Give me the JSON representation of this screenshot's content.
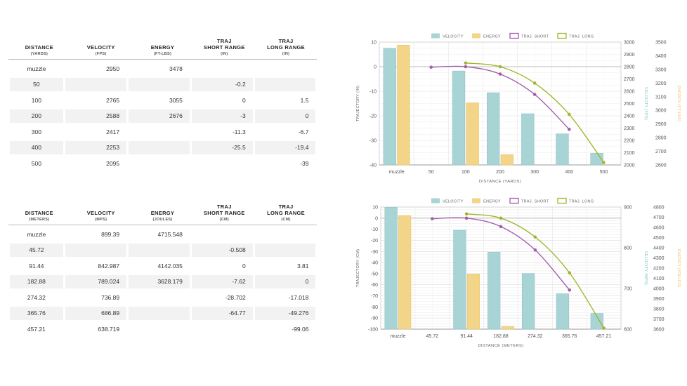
{
  "tables": [
    {
      "columns": [
        {
          "title": "DISTANCE",
          "unit": "(YARDS)"
        },
        {
          "title": "VELOCITY",
          "unit": "(FPS)"
        },
        {
          "title": "ENERGY",
          "unit": "(FT-LBS)"
        },
        {
          "title": "TRAJ\nSHORT RANGE",
          "unit": "(IN)"
        },
        {
          "title": "TRAJ\nLONG RANGE",
          "unit": "(IN)"
        }
      ],
      "rows": [
        [
          "muzzle",
          "2950",
          "3478",
          "",
          ""
        ],
        [
          "50",
          "",
          "",
          "-0.2",
          ""
        ],
        [
          "100",
          "2765",
          "3055",
          "0",
          "1.5"
        ],
        [
          "200",
          "2588",
          "2676",
          "-3",
          "0"
        ],
        [
          "300",
          "2417",
          "",
          "-11.3",
          "-6.7"
        ],
        [
          "400",
          "2253",
          "",
          "-25.5",
          "-19.4"
        ],
        [
          "500",
          "2095",
          "",
          "",
          "-39"
        ]
      ]
    },
    {
      "columns": [
        {
          "title": "DISTANCE",
          "unit": "(METERS)"
        },
        {
          "title": "VELOCITY",
          "unit": "(MPS)"
        },
        {
          "title": "ENERGY",
          "unit": "(JOULES)"
        },
        {
          "title": "TRAJ\nSHORT RANGE",
          "unit": "(CM)"
        },
        {
          "title": "TRAJ\nLONG RANGE",
          "unit": "(CM)"
        }
      ],
      "rows": [
        [
          "muzzle",
          "899.39",
          "4715.548",
          "",
          ""
        ],
        [
          "45.72",
          "",
          "",
          "-0.508",
          ""
        ],
        [
          "91.44",
          "842.987",
          "4142.035",
          "0",
          "3.81"
        ],
        [
          "182.88",
          "789.024",
          "3628.179",
          "-7.62",
          "0"
        ],
        [
          "274.32",
          "736.89",
          "",
          "-28.702",
          "-17.018"
        ],
        [
          "365.76",
          "686.89",
          "",
          "-64.77",
          "-49.276"
        ],
        [
          "457.21",
          "638.719",
          "",
          "",
          "-99.06"
        ]
      ]
    }
  ],
  "colors": {
    "velocity": "#a9d4d6",
    "energy": "#f3d58a",
    "traj_short": "#a55cab",
    "traj_long": "#a3b52c",
    "velocity_axis": "#7fbfc2",
    "energy_axis": "#e8c15c"
  },
  "chart_data": [
    {
      "type": "bar",
      "categories": [
        "muzzle",
        "50",
        "100",
        "200",
        "300",
        "400",
        "500"
      ],
      "xlabel": "DISTANCE (YARDS)",
      "legend": [
        "VELOCITY",
        "ENERGY",
        "TRAJ. SHORT",
        "TRAJ. LONG"
      ],
      "legend_position": "top",
      "grid": true,
      "left_axis": {
        "label": "TRAJECTORY (IN)",
        "ticks": [
          10,
          0,
          -10,
          -20,
          -30,
          -40
        ],
        "range": [
          -40,
          10
        ]
      },
      "velocity_axis": {
        "label": "VELOCITY (FPS)",
        "ticks": [
          3000,
          2900,
          2800,
          2700,
          2600,
          2500,
          2400,
          2300,
          2200,
          2100,
          2000
        ],
        "range": [
          2000,
          3000
        ]
      },
      "energy_axis": {
        "label": "ENERGY (FT-LBS)",
        "ticks": [
          3500,
          3400,
          3300,
          3200,
          3100,
          3000,
          2900,
          2800,
          2700,
          2600
        ],
        "range": [
          2600,
          3500
        ]
      },
      "series": [
        {
          "name": "VELOCITY",
          "kind": "bar",
          "axis": "velocity",
          "values": [
            2950,
            null,
            2765,
            2588,
            2417,
            2253,
            2095
          ]
        },
        {
          "name": "ENERGY",
          "kind": "bar",
          "axis": "energy",
          "values": [
            3478,
            null,
            3055,
            2676,
            null,
            null,
            null
          ]
        },
        {
          "name": "TRAJ. SHORT",
          "kind": "line",
          "axis": "left",
          "values": [
            null,
            -0.2,
            0,
            -3,
            -11.3,
            -25.5,
            null
          ]
        },
        {
          "name": "TRAJ. LONG",
          "kind": "line",
          "axis": "left",
          "values": [
            null,
            null,
            1.5,
            0,
            -6.7,
            -19.4,
            -39
          ]
        }
      ]
    },
    {
      "type": "bar",
      "categories": [
        "muzzle",
        "45.72",
        "91.44",
        "182.88",
        "274.32",
        "365.76",
        "457.21"
      ],
      "xlabel": "DISTANCE (METERS)",
      "legend": [
        "VELOCITY",
        "ENERGY",
        "TRAJ. SHORT",
        "TRAJ. LONG"
      ],
      "legend_position": "top",
      "grid": true,
      "left_axis": {
        "label": "TRAJECTORY (CM)",
        "ticks": [
          10,
          0,
          -10,
          -20,
          -30,
          -40,
          -50,
          -60,
          -70,
          -80,
          -90,
          -100
        ],
        "range": [
          -100,
          10
        ]
      },
      "velocity_axis": {
        "label": "VELOCITY (MPS)",
        "ticks": [
          900,
          800,
          700,
          600
        ],
        "range": [
          600,
          900
        ]
      },
      "energy_axis": {
        "label": "ENERGY (JOULES)",
        "ticks": [
          4800,
          4700,
          4600,
          4500,
          4400,
          4300,
          4200,
          4100,
          4000,
          3900,
          3800,
          3700,
          3600
        ],
        "range": [
          3600,
          4800
        ]
      },
      "series": [
        {
          "name": "VELOCITY",
          "kind": "bar",
          "axis": "velocity",
          "values": [
            899.39,
            null,
            842.987,
            789.024,
            736.89,
            686.89,
            638.719
          ]
        },
        {
          "name": "ENERGY",
          "kind": "bar",
          "axis": "energy",
          "values": [
            4715.548,
            null,
            4142.035,
            3628.179,
            null,
            null,
            null
          ]
        },
        {
          "name": "TRAJ. SHORT",
          "kind": "line",
          "axis": "left",
          "values": [
            null,
            -0.508,
            0,
            -7.62,
            -28.702,
            -64.77,
            null
          ]
        },
        {
          "name": "TRAJ. LONG",
          "kind": "line",
          "axis": "left",
          "values": [
            null,
            null,
            3.81,
            0,
            -17.018,
            -49.276,
            -99.06
          ]
        }
      ]
    }
  ]
}
